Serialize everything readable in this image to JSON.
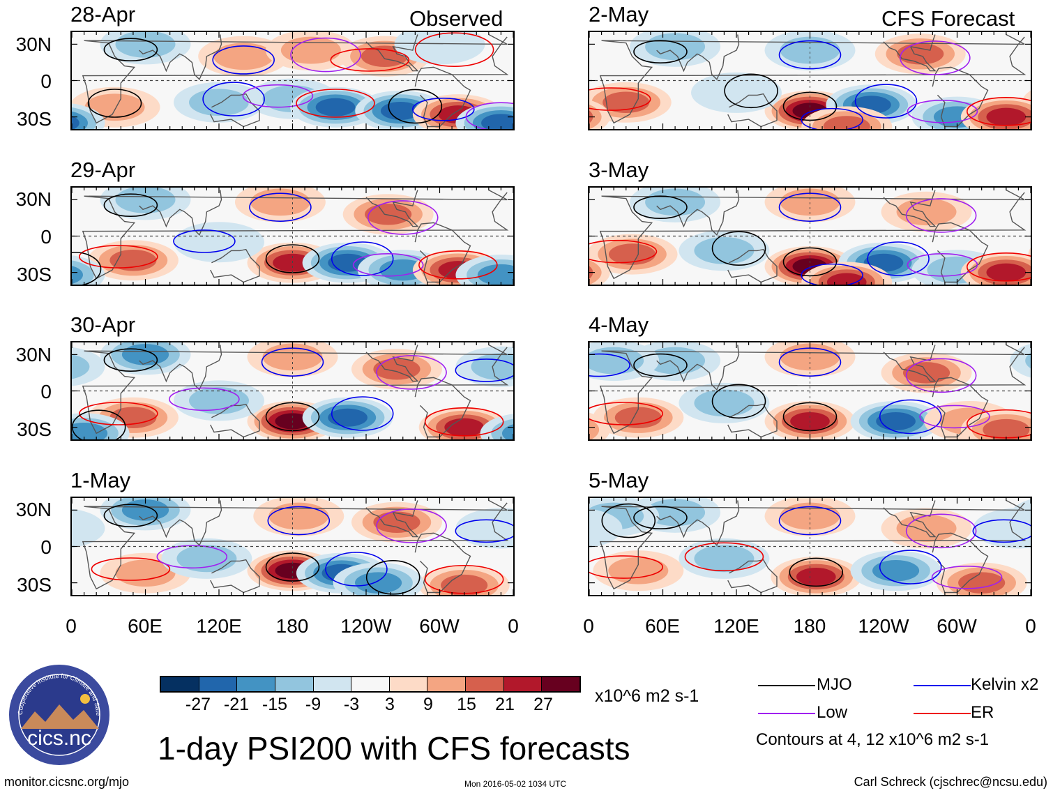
{
  "chart_data": {
    "type": "heatmap",
    "title": "1-day PSI200 with CFS forecasts",
    "variable": "PSI200",
    "units": "x10^6 m2 s-1",
    "columns": [
      {
        "title": "Observed",
        "panels": [
          "28-Apr",
          "29-Apr",
          "30-Apr",
          "1-May"
        ]
      },
      {
        "title": "CFS Forecast",
        "panels": [
          "2-May",
          "3-May",
          "4-May",
          "5-May"
        ]
      }
    ],
    "y_ticks": [
      "30N",
      "0",
      "30S"
    ],
    "x_ticks": [
      "0",
      "60E",
      "120E",
      "180",
      "120W",
      "60W",
      "0"
    ],
    "ylim": [
      -40,
      40
    ],
    "xlim": [
      0,
      360
    ],
    "colorbar": {
      "ticks": [
        -27,
        -21,
        -15,
        -9,
        -3,
        3,
        9,
        15,
        21,
        27
      ],
      "colors": [
        "#053061",
        "#2166ac",
        "#4393c3",
        "#92c5de",
        "#d1e5f0",
        "#f7f7f7",
        "#fddbc7",
        "#f4a582",
        "#d6604d",
        "#b2182b",
        "#67001f"
      ]
    },
    "contour_legend": [
      {
        "label": "MJO",
        "color": "#000000"
      },
      {
        "label": "Kelvin x2",
        "color": "#0000ee"
      },
      {
        "label": "Low",
        "color": "#a020f0"
      },
      {
        "label": "ER",
        "color": "#ee0000"
      }
    ],
    "contour_note": "Contours at 4, 12 x10^6 m2 s-1",
    "anomaly_centers": [
      [
        {
          "lon": 60,
          "lat": 30,
          "v": -12
        },
        {
          "lon": 140,
          "lat": 20,
          "v": 9
        },
        {
          "lon": 195,
          "lat": 25,
          "v": 14
        },
        {
          "lon": 255,
          "lat": 20,
          "v": 17
        },
        {
          "lon": 35,
          "lat": -22,
          "v": 14
        },
        {
          "lon": 120,
          "lat": -18,
          "v": -9
        },
        {
          "lon": 180,
          "lat": -15,
          "v": -12
        },
        {
          "lon": 215,
          "lat": -22,
          "v": -25
        },
        {
          "lon": 268,
          "lat": -25,
          "v": -26
        },
        {
          "lon": 315,
          "lat": -28,
          "v": 24
        },
        {
          "lon": 350,
          "lat": -35,
          "v": -22
        },
        {
          "lon": 300,
          "lat": 30,
          "v": -8
        }
      ],
      [
        {
          "lon": 60,
          "lat": 30,
          "v": -14
        },
        {
          "lon": 170,
          "lat": 28,
          "v": 10
        },
        {
          "lon": 258,
          "lat": 18,
          "v": 16
        },
        {
          "lon": 50,
          "lat": -20,
          "v": 18
        },
        {
          "lon": 180,
          "lat": -22,
          "v": 22
        },
        {
          "lon": 225,
          "lat": -22,
          "v": -26
        },
        {
          "lon": 270,
          "lat": -28,
          "v": -18
        },
        {
          "lon": 315,
          "lat": -28,
          "v": 22
        },
        {
          "lon": 350,
          "lat": -32,
          "v": -18
        },
        {
          "lon": 120,
          "lat": -5,
          "v": -8
        }
      ],
      [
        {
          "lon": 60,
          "lat": 30,
          "v": -16
        },
        {
          "lon": 180,
          "lat": 28,
          "v": 13
        },
        {
          "lon": 265,
          "lat": 18,
          "v": 18
        },
        {
          "lon": 50,
          "lat": -22,
          "v": 15
        },
        {
          "lon": 180,
          "lat": -25,
          "v": 28
        },
        {
          "lon": 225,
          "lat": -22,
          "v": -26
        },
        {
          "lon": 120,
          "lat": -8,
          "v": -10
        },
        {
          "lon": 320,
          "lat": -30,
          "v": 22
        },
        {
          "lon": 10,
          "lat": -35,
          "v": -15
        },
        {
          "lon": 350,
          "lat": 20,
          "v": -10
        }
      ],
      [
        {
          "lon": 60,
          "lat": 30,
          "v": -16
        },
        {
          "lon": 185,
          "lat": 25,
          "v": 13
        },
        {
          "lon": 265,
          "lat": 20,
          "v": 16
        },
        {
          "lon": 60,
          "lat": -22,
          "v": 12
        },
        {
          "lon": 180,
          "lat": -20,
          "v": 28
        },
        {
          "lon": 220,
          "lat": -22,
          "v": -22
        },
        {
          "lon": 110,
          "lat": -10,
          "v": -10
        },
        {
          "lon": 320,
          "lat": -32,
          "v": 20
        },
        {
          "lon": 250,
          "lat": -30,
          "v": -18
        },
        {
          "lon": 350,
          "lat": 15,
          "v": -8
        }
      ],
      [
        {
          "lon": 70,
          "lat": 28,
          "v": -12
        },
        {
          "lon": 180,
          "lat": 25,
          "v": -10
        },
        {
          "lon": 270,
          "lat": 22,
          "v": 16
        },
        {
          "lon": 30,
          "lat": -18,
          "v": 15
        },
        {
          "lon": 180,
          "lat": -25,
          "v": 28
        },
        {
          "lon": 230,
          "lat": -20,
          "v": -25
        },
        {
          "lon": 300,
          "lat": -30,
          "v": -16
        },
        {
          "lon": 340,
          "lat": -30,
          "v": 22
        },
        {
          "lon": 120,
          "lat": -10,
          "v": -8
        },
        {
          "lon": 210,
          "lat": -38,
          "v": 20
        }
      ],
      [
        {
          "lon": 70,
          "lat": 28,
          "v": -14
        },
        {
          "lon": 180,
          "lat": 28,
          "v": 14
        },
        {
          "lon": 275,
          "lat": 20,
          "v": 14
        },
        {
          "lon": 35,
          "lat": -15,
          "v": 18
        },
        {
          "lon": 180,
          "lat": -25,
          "v": 28
        },
        {
          "lon": 240,
          "lat": -22,
          "v": -24
        },
        {
          "lon": 300,
          "lat": -28,
          "v": -14
        },
        {
          "lon": 340,
          "lat": -30,
          "v": 22
        },
        {
          "lon": 110,
          "lat": -12,
          "v": -10
        },
        {
          "lon": 210,
          "lat": -38,
          "v": 22
        }
      ],
      [
        {
          "lon": 70,
          "lat": 25,
          "v": -14
        },
        {
          "lon": 180,
          "lat": 28,
          "v": 14
        },
        {
          "lon": 275,
          "lat": 15,
          "v": 16
        },
        {
          "lon": 40,
          "lat": -22,
          "v": 16
        },
        {
          "lon": 180,
          "lat": -25,
          "v": 26
        },
        {
          "lon": 250,
          "lat": -25,
          "v": -22
        },
        {
          "lon": 310,
          "lat": -25,
          "v": 14
        },
        {
          "lon": 340,
          "lat": -32,
          "v": 18
        },
        {
          "lon": 110,
          "lat": -10,
          "v": -10
        },
        {
          "lon": 20,
          "lat": 25,
          "v": -10
        }
      ],
      [
        {
          "lon": 70,
          "lat": 28,
          "v": -12
        },
        {
          "lon": 180,
          "lat": 25,
          "v": 10
        },
        {
          "lon": 275,
          "lat": 15,
          "v": 14
        },
        {
          "lon": 40,
          "lat": -20,
          "v": 14
        },
        {
          "lon": 185,
          "lat": -25,
          "v": 22
        },
        {
          "lon": 250,
          "lat": -20,
          "v": -16
        },
        {
          "lon": 320,
          "lat": -30,
          "v": 16
        },
        {
          "lon": 110,
          "lat": -10,
          "v": -9
        },
        {
          "lon": 20,
          "lat": 25,
          "v": -9
        },
        {
          "lon": 350,
          "lat": 15,
          "v": -8
        }
      ]
    ]
  },
  "logo": {
    "text": "cics.nc",
    "ring_text": "Cooperative Institute for Climate and Satellites"
  },
  "footer": {
    "left": "monitor.cicsnc.org/mjo",
    "middle": "Mon 2016-05-02 1034 UTC",
    "right": "Carl Schreck (cjschrec@ncsu.edu)"
  }
}
